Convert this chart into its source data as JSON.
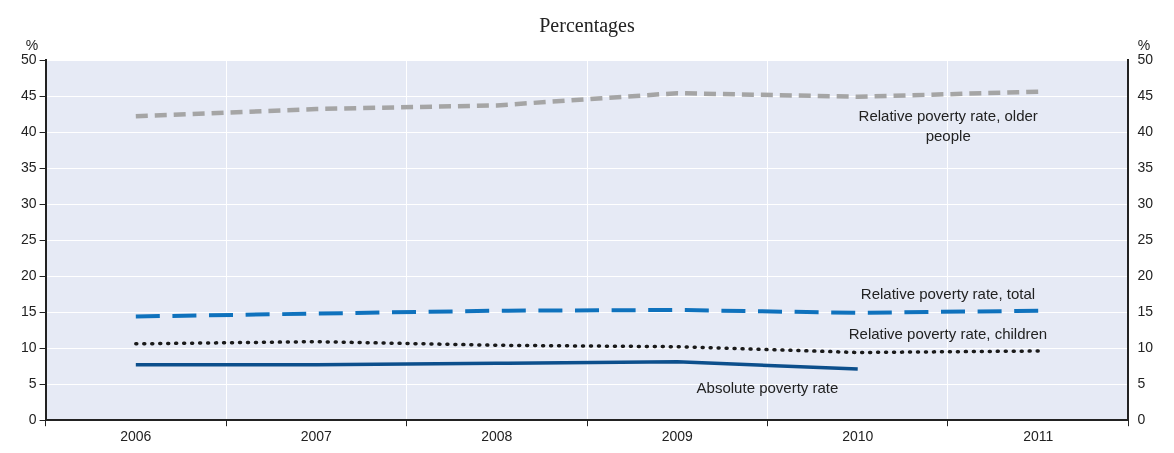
{
  "chart_data": {
    "type": "line",
    "title": "Percentages",
    "ylabel": "%",
    "y2label": "%",
    "categories": [
      "2006",
      "2007",
      "2008",
      "2009",
      "2010",
      "2011"
    ],
    "series": [
      {
        "name": "Relative poverty rate, older people",
        "color": "#a5a5a5",
        "line_style": "dashed",
        "values": [
          42.2,
          43.2,
          43.7,
          45.4,
          44.9,
          45.6
        ]
      },
      {
        "name": "Relative poverty rate, total",
        "color": "#0f72bd",
        "line_style": "dashed",
        "values": [
          14.4,
          14.8,
          15.2,
          15.3,
          14.9,
          15.2
        ]
      },
      {
        "name": "Relative poverty rate, children",
        "color": "#1a1a1a",
        "line_style": "dotted",
        "values": [
          10.6,
          10.9,
          10.4,
          10.2,
          9.4,
          9.6
        ]
      },
      {
        "name": "Absolute poverty rate",
        "color": "#0c4f8c",
        "line_style": "solid",
        "values": [
          7.7,
          7.7,
          7.9,
          8.1,
          7.1,
          null
        ]
      }
    ],
    "ylim": [
      0,
      50
    ],
    "yticks": [
      0,
      5,
      10,
      15,
      20,
      25,
      30,
      35,
      40,
      45,
      50
    ],
    "y2lim": [
      0,
      50
    ],
    "y2ticks": [
      0,
      5,
      10,
      15,
      20,
      25,
      30,
      35,
      40,
      45,
      50
    ],
    "grid": true,
    "legend": false,
    "marker": "none"
  }
}
